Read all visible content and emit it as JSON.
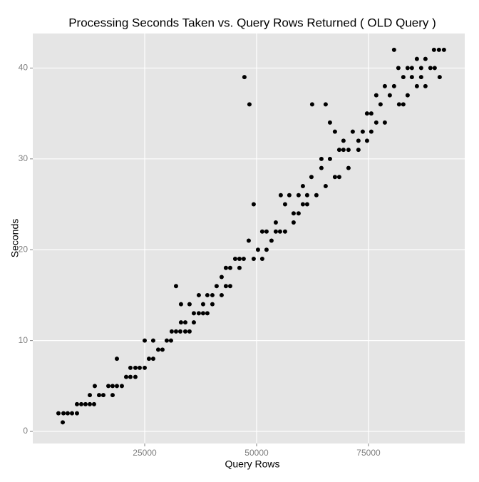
{
  "chart_data": {
    "type": "scatter",
    "title": "Processing Seconds Taken vs. Query Rows Returned ( OLD Query )",
    "x_label": "Query Rows",
    "y_label": "Seconds",
    "xlim": [
      0,
      96500
    ],
    "ylim": [
      -1.33,
      43.8
    ],
    "xticks": [
      25000,
      50000,
      75000
    ],
    "yticks": [
      0,
      10,
      20,
      30,
      40
    ],
    "grid": true,
    "color": "#000000",
    "series": [
      {
        "name": "points",
        "color": "#000000",
        "x": [
          5730,
          6690,
          6850,
          7800,
          8760,
          9870,
          9870,
          10830,
          11780,
          12740,
          12740,
          13690,
          13850,
          14810,
          15760,
          16880,
          17830,
          17830,
          18790,
          18790,
          19900,
          20860,
          21810,
          21810,
          22920,
          22920,
          23880,
          25000,
          25000,
          25950,
          26900,
          26900,
          28020,
          28970,
          29930,
          30880,
          31040,
          32000,
          32000,
          32950,
          33110,
          33110,
          34070,
          34070,
          35020,
          35020,
          35980,
          35980,
          37090,
          37090,
          38050,
          38050,
          39000,
          39000,
          40120,
          40120,
          41070,
          42190,
          42190,
          43140,
          43140,
          44100,
          44100,
          45210,
          46170,
          46170,
          47120,
          47280,
          48240,
          48400,
          49350,
          49350,
          50310,
          51260,
          51260,
          52220,
          52220,
          53330,
          54290,
          54290,
          55240,
          55400,
          56360,
          56360,
          57310,
          58270,
          58270,
          59380,
          59380,
          60340,
          60340,
          61290,
          61290,
          62250,
          62410,
          63360,
          64480,
          64480,
          65430,
          65430,
          66390,
          66390,
          67500,
          67500,
          68460,
          68460,
          69410,
          69410,
          70530,
          70530,
          71480,
          72750,
          72750,
          73710,
          74670,
          74670,
          75620,
          75620,
          76730,
          76730,
          77690,
          78650,
          78650,
          79760,
          80710,
          80710,
          81670,
          81830,
          82780,
          82780,
          83740,
          83740,
          84690,
          84690,
          85810,
          85810,
          86760,
          86760,
          87720,
          87720,
          88830,
          89630,
          89790,
          90740,
          90900,
          91860
        ],
        "values": [
          2,
          1,
          2,
          2,
          2,
          2,
          3,
          3,
          3,
          3,
          4,
          3,
          5,
          4,
          4,
          5,
          4,
          5,
          5,
          8,
          5,
          6,
          6,
          7,
          6,
          7,
          7,
          7,
          10,
          8,
          8,
          10,
          9,
          9,
          10,
          10,
          11,
          11,
          16,
          11,
          14,
          12,
          12,
          11,
          11,
          14,
          12,
          13,
          13,
          15,
          14,
          13,
          13,
          15,
          15,
          14,
          16,
          17,
          15,
          18,
          16,
          18,
          16,
          19,
          19,
          18,
          19,
          39,
          21,
          36,
          25,
          19,
          20,
          22,
          19,
          22,
          20,
          21,
          23,
          22,
          22,
          26,
          22,
          25,
          26,
          24,
          23,
          24,
          26,
          25,
          27,
          25,
          26,
          28,
          36,
          26,
          29,
          30,
          27,
          36,
          30,
          34,
          33,
          28,
          28,
          31,
          32,
          31,
          29,
          31,
          33,
          31,
          32,
          33,
          35,
          32,
          35,
          33,
          37,
          34,
          36,
          34,
          38,
          37,
          38,
          42,
          40,
          36,
          39,
          36,
          37,
          40,
          40,
          39,
          41,
          38,
          39,
          40,
          41,
          38,
          40,
          42,
          40,
          42,
          39,
          42
        ]
      }
    ]
  }
}
